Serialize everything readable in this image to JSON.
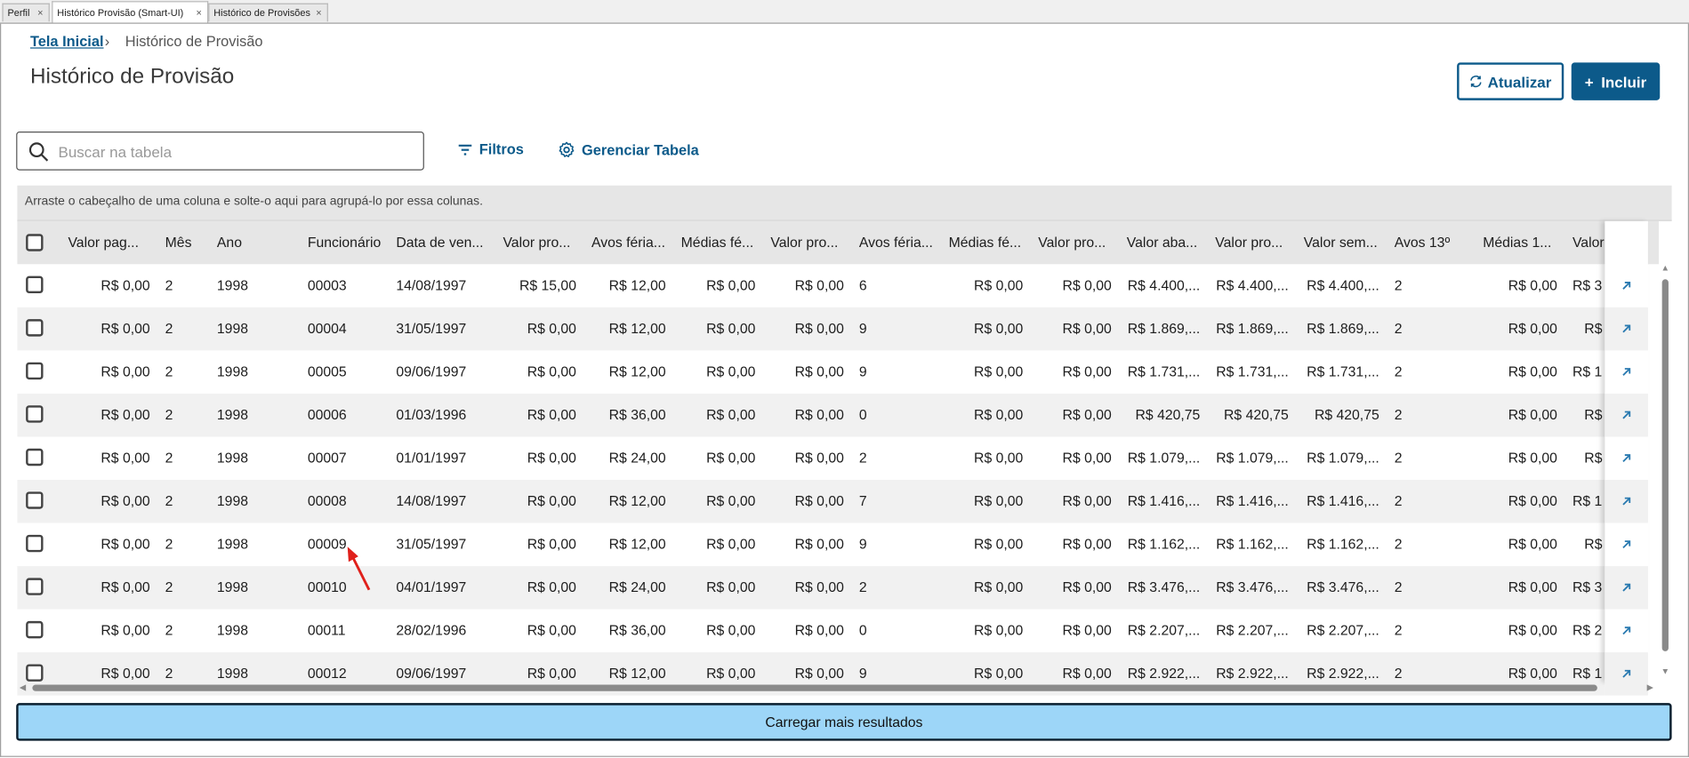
{
  "tabs": [
    {
      "label": "Perfil",
      "active": false
    },
    {
      "label": "Histórico Provisão (Smart-UI)",
      "active": true
    },
    {
      "label": "Histórico de Provisões",
      "active": false
    }
  ],
  "tab_close": "×",
  "breadcrumb": {
    "home": "Tela Inicial",
    "separator": "›",
    "current": "Histórico de Provisão"
  },
  "page_title": "Histórico de Provisão",
  "actions": {
    "refresh": "Atualizar",
    "add": "Incluir",
    "add_prefix": "+"
  },
  "search": {
    "placeholder": "Buscar na tabela",
    "value": ""
  },
  "toolbar": {
    "filters": "Filtros",
    "manage": "Gerenciar Tabela"
  },
  "group_hint": "Arraste o cabeçalho de uma coluna e solte-o aqui para agrupá-lo por essa colunas.",
  "columns": [
    "Valor pag...",
    "Mês",
    "Ano",
    "Funcionário",
    "Data de ven...",
    "Valor pro...",
    "Avos féria...",
    "Médias fé...",
    "Valor pro...",
    "Avos féria...",
    "Médias fé...",
    "Valor pro...",
    "Valor aba...",
    "Valor pro...",
    "Valor sem...",
    "Avos 13º",
    "Médias 1...",
    "Valor"
  ],
  "rows": [
    [
      "R$ 0,00",
      "2",
      "1998",
      "00003",
      "14/08/1997",
      "R$ 15,00",
      "R$ 12,00",
      "R$ 0,00",
      "R$ 0,00",
      "6",
      "R$ 0,00",
      "R$ 0,00",
      "R$ 4.400,...",
      "R$ 4.400,...",
      "R$ 4.400,...",
      "2",
      "R$ 0,00",
      "R$ 3"
    ],
    [
      "R$ 0,00",
      "2",
      "1998",
      "00004",
      "31/05/1997",
      "R$ 0,00",
      "R$ 12,00",
      "R$ 0,00",
      "R$ 0,00",
      "9",
      "R$ 0,00",
      "R$ 0,00",
      "R$ 1.869,...",
      "R$ 1.869,...",
      "R$ 1.869,...",
      "2",
      "R$ 0,00",
      "R$"
    ],
    [
      "R$ 0,00",
      "2",
      "1998",
      "00005",
      "09/06/1997",
      "R$ 0,00",
      "R$ 12,00",
      "R$ 0,00",
      "R$ 0,00",
      "9",
      "R$ 0,00",
      "R$ 0,00",
      "R$ 1.731,...",
      "R$ 1.731,...",
      "R$ 1.731,...",
      "2",
      "R$ 0,00",
      "R$ 1"
    ],
    [
      "R$ 0,00",
      "2",
      "1998",
      "00006",
      "01/03/1996",
      "R$ 0,00",
      "R$ 36,00",
      "R$ 0,00",
      "R$ 0,00",
      "0",
      "R$ 0,00",
      "R$ 0,00",
      "R$ 420,75",
      "R$ 420,75",
      "R$ 420,75",
      "2",
      "R$ 0,00",
      "R$"
    ],
    [
      "R$ 0,00",
      "2",
      "1998",
      "00007",
      "01/01/1997",
      "R$ 0,00",
      "R$ 24,00",
      "R$ 0,00",
      "R$ 0,00",
      "2",
      "R$ 0,00",
      "R$ 0,00",
      "R$ 1.079,...",
      "R$ 1.079,...",
      "R$ 1.079,...",
      "2",
      "R$ 0,00",
      "R$"
    ],
    [
      "R$ 0,00",
      "2",
      "1998",
      "00008",
      "14/08/1997",
      "R$ 0,00",
      "R$ 12,00",
      "R$ 0,00",
      "R$ 0,00",
      "7",
      "R$ 0,00",
      "R$ 0,00",
      "R$ 1.416,...",
      "R$ 1.416,...",
      "R$ 1.416,...",
      "2",
      "R$ 0,00",
      "R$ 1"
    ],
    [
      "R$ 0,00",
      "2",
      "1998",
      "00009",
      "31/05/1997",
      "R$ 0,00",
      "R$ 12,00",
      "R$ 0,00",
      "R$ 0,00",
      "9",
      "R$ 0,00",
      "R$ 0,00",
      "R$ 1.162,...",
      "R$ 1.162,...",
      "R$ 1.162,...",
      "2",
      "R$ 0,00",
      "R$"
    ],
    [
      "R$ 0,00",
      "2",
      "1998",
      "00010",
      "04/01/1997",
      "R$ 0,00",
      "R$ 24,00",
      "R$ 0,00",
      "R$ 0,00",
      "2",
      "R$ 0,00",
      "R$ 0,00",
      "R$ 3.476,...",
      "R$ 3.476,...",
      "R$ 3.476,...",
      "2",
      "R$ 0,00",
      "R$ 3"
    ],
    [
      "R$ 0,00",
      "2",
      "1998",
      "00011",
      "28/02/1996",
      "R$ 0,00",
      "R$ 36,00",
      "R$ 0,00",
      "R$ 0,00",
      "0",
      "R$ 0,00",
      "R$ 0,00",
      "R$ 2.207,...",
      "R$ 2.207,...",
      "R$ 2.207,...",
      "2",
      "R$ 0,00",
      "R$ 2"
    ],
    [
      "R$ 0,00",
      "2",
      "1998",
      "00012",
      "09/06/1997",
      "R$ 0,00",
      "R$ 12,00",
      "R$ 0,00",
      "R$ 0,00",
      "9",
      "R$ 0,00",
      "R$ 0,00",
      "R$ 2.922,...",
      "R$ 2.922,...",
      "R$ 2.922,...",
      "2",
      "R$ 0,00",
      "R$ 1"
    ]
  ],
  "row_action_icon": "open-external-arrow-icon",
  "load_more": "Carregar mais resultados",
  "colors": {
    "primary": "#0c5a8a",
    "load_more_bg": "#9dd6f8",
    "row_alt": "#f1f1f1",
    "header_bg": "#e6e6e6",
    "annotation_arrow": "#e0201b"
  }
}
